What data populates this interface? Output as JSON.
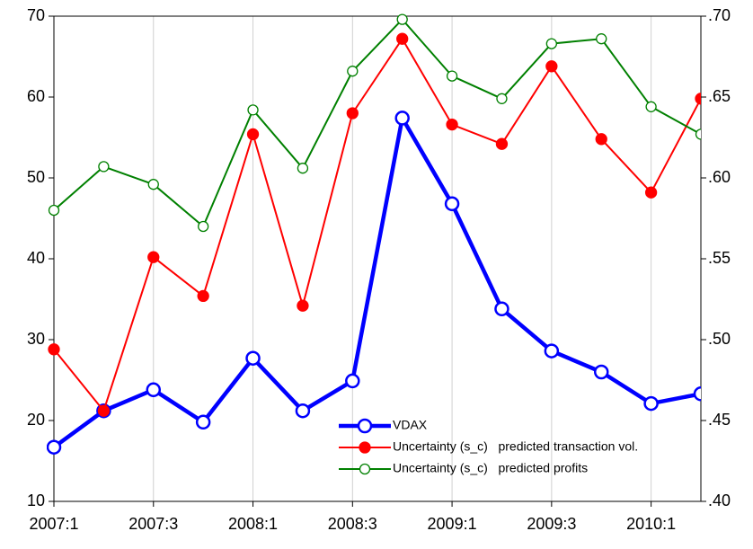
{
  "chart_data": {
    "type": "line",
    "categories": [
      "2007:1",
      null,
      "2007:3",
      null,
      "2008:1",
      null,
      "2008:3",
      null,
      "2009:1",
      null,
      "2009:3",
      null,
      "2010:1",
      null
    ],
    "ylim": [
      10,
      70
    ],
    "yticks": [
      10,
      20,
      30,
      40,
      50,
      60,
      70
    ],
    "y2lim": [
      0.4,
      0.7
    ],
    "y2ticks": [
      {
        "value": 0.4,
        "label": ".40"
      },
      {
        "value": 0.45,
        "label": ".45"
      },
      {
        "value": 0.5,
        "label": ".50"
      },
      {
        "value": 0.55,
        "label": ".55"
      },
      {
        "value": 0.6,
        "label": ".60"
      },
      {
        "value": 0.65,
        "label": ".65"
      },
      {
        "value": 0.7,
        "label": ".70"
      }
    ],
    "grid": true,
    "legend": "bottom-right",
    "series": [
      {
        "name": "VDAX",
        "color": "#0000ff",
        "marker": "open",
        "values": [
          16.7,
          21.2,
          23.8,
          19.8,
          27.7,
          21.2,
          24.9,
          57.4,
          46.8,
          33.8,
          28.6,
          26.0,
          22.1,
          23.3
        ]
      },
      {
        "name": "Uncertainty (s_c)   predicted transaction vol.",
        "color": "#ff0000",
        "marker": "filled",
        "axis": "y2",
        "values": [
          0.494,
          0.456,
          0.551,
          0.527,
          0.627,
          0.521,
          0.64,
          0.686,
          0.633,
          0.621,
          0.669,
          0.624,
          0.591,
          0.649
        ]
      },
      {
        "name": "Uncertainty (s_c)   predicted profits",
        "color": "#008000",
        "marker": "open",
        "axis": "y2",
        "values": [
          0.58,
          0.607,
          0.596,
          0.57,
          0.642,
          0.606,
          0.666,
          0.698,
          0.663,
          0.649,
          0.683,
          0.686,
          0.644,
          0.627
        ]
      }
    ]
  }
}
